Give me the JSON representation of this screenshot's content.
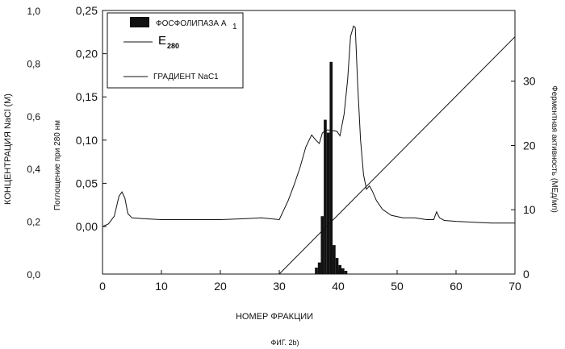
{
  "chart_data": {
    "type": "line",
    "caption": "ФИГ. 2b)",
    "xlabel": "НОМЕР ФРАКЦИИ",
    "ylabel_left_outer": "КОНЦЕНТРАЦИЯ NaCl (M)",
    "ylabel_left_inner": "Поглощение при 280 нм",
    "ylabel_right": "Ферментная активность (МЕд/мл)",
    "xlim": [
      0,
      70
    ],
    "x_ticks": [
      "0",
      "10",
      "20",
      "30",
      "40",
      "50",
      "60",
      "70"
    ],
    "y_absorbance": {
      "ticks": [
        "0,00",
        "0,05",
        "0,10",
        "0,15",
        "0,20",
        "0,25"
      ],
      "lim": [
        -0.055,
        0.25
      ]
    },
    "y_nacl": {
      "ticks": [
        "0,0",
        "0,2",
        "0,4",
        "0,6",
        "0,8",
        "1,0"
      ],
      "lim": [
        0,
        1.0
      ]
    },
    "y_activity": {
      "ticks": [
        "0",
        "10",
        "20",
        "30"
      ],
      "lim": [
        0,
        41
      ]
    },
    "legend": {
      "position": "top-left",
      "entries": [
        {
          "label": "ФОСФОЛИПАЗА A",
          "subscript": "1",
          "style": "filled-bar"
        },
        {
          "label": "E",
          "subscript": "280",
          "style": "line"
        },
        {
          "label": "ГРАДИЕНТ NaC1",
          "style": "line"
        }
      ]
    },
    "series": [
      {
        "name": "E280",
        "axis": "absorbance",
        "x": [
          0,
          1,
          2,
          2.8,
          3.3,
          3.8,
          4.3,
          5,
          7,
          10,
          15,
          20,
          24,
          27,
          30,
          31.5,
          32.5,
          33.5,
          34.5,
          35.5,
          36.2,
          36.8,
          37.3,
          37.8,
          38.3,
          38.8,
          39.3,
          39.8,
          40.3,
          41,
          41.6,
          42.1,
          42.6,
          42.9,
          43.3,
          43.8,
          44.3,
          44.8,
          45.3,
          45.8,
          46.5,
          47.5,
          49,
          51,
          53,
          55,
          56.2,
          56.7,
          57.2,
          58,
          60,
          63,
          66,
          70
        ],
        "y": [
          0.0,
          0.003,
          0.012,
          0.035,
          0.04,
          0.033,
          0.015,
          0.01,
          0.009,
          0.008,
          0.008,
          0.008,
          0.009,
          0.01,
          0.008,
          0.03,
          0.048,
          0.068,
          0.092,
          0.106,
          0.1,
          0.096,
          0.108,
          0.111,
          0.112,
          0.11,
          0.111,
          0.11,
          0.105,
          0.13,
          0.17,
          0.22,
          0.232,
          0.23,
          0.165,
          0.1,
          0.06,
          0.043,
          0.047,
          0.041,
          0.03,
          0.02,
          0.013,
          0.01,
          0.01,
          0.008,
          0.008,
          0.017,
          0.01,
          0.007,
          0.006,
          0.005,
          0.004,
          0.004
        ]
      },
      {
        "name": "ГРАДИЕНТ NaC1",
        "axis": "nacl",
        "x": [
          30,
          70
        ],
        "y": [
          0.0,
          0.9
        ]
      },
      {
        "name": "ФОСФОЛИПАЗА A1",
        "axis": "activity",
        "type": "bar",
        "x": [
          36.3,
          36.8,
          37.3,
          37.8,
          38.3,
          38.8,
          39.3,
          39.8,
          40.3,
          40.8,
          41.3
        ],
        "values": [
          1.0,
          1.8,
          9.0,
          24.0,
          22.0,
          33.0,
          4.5,
          2.5,
          1.4,
          0.9,
          0.5
        ]
      }
    ]
  }
}
